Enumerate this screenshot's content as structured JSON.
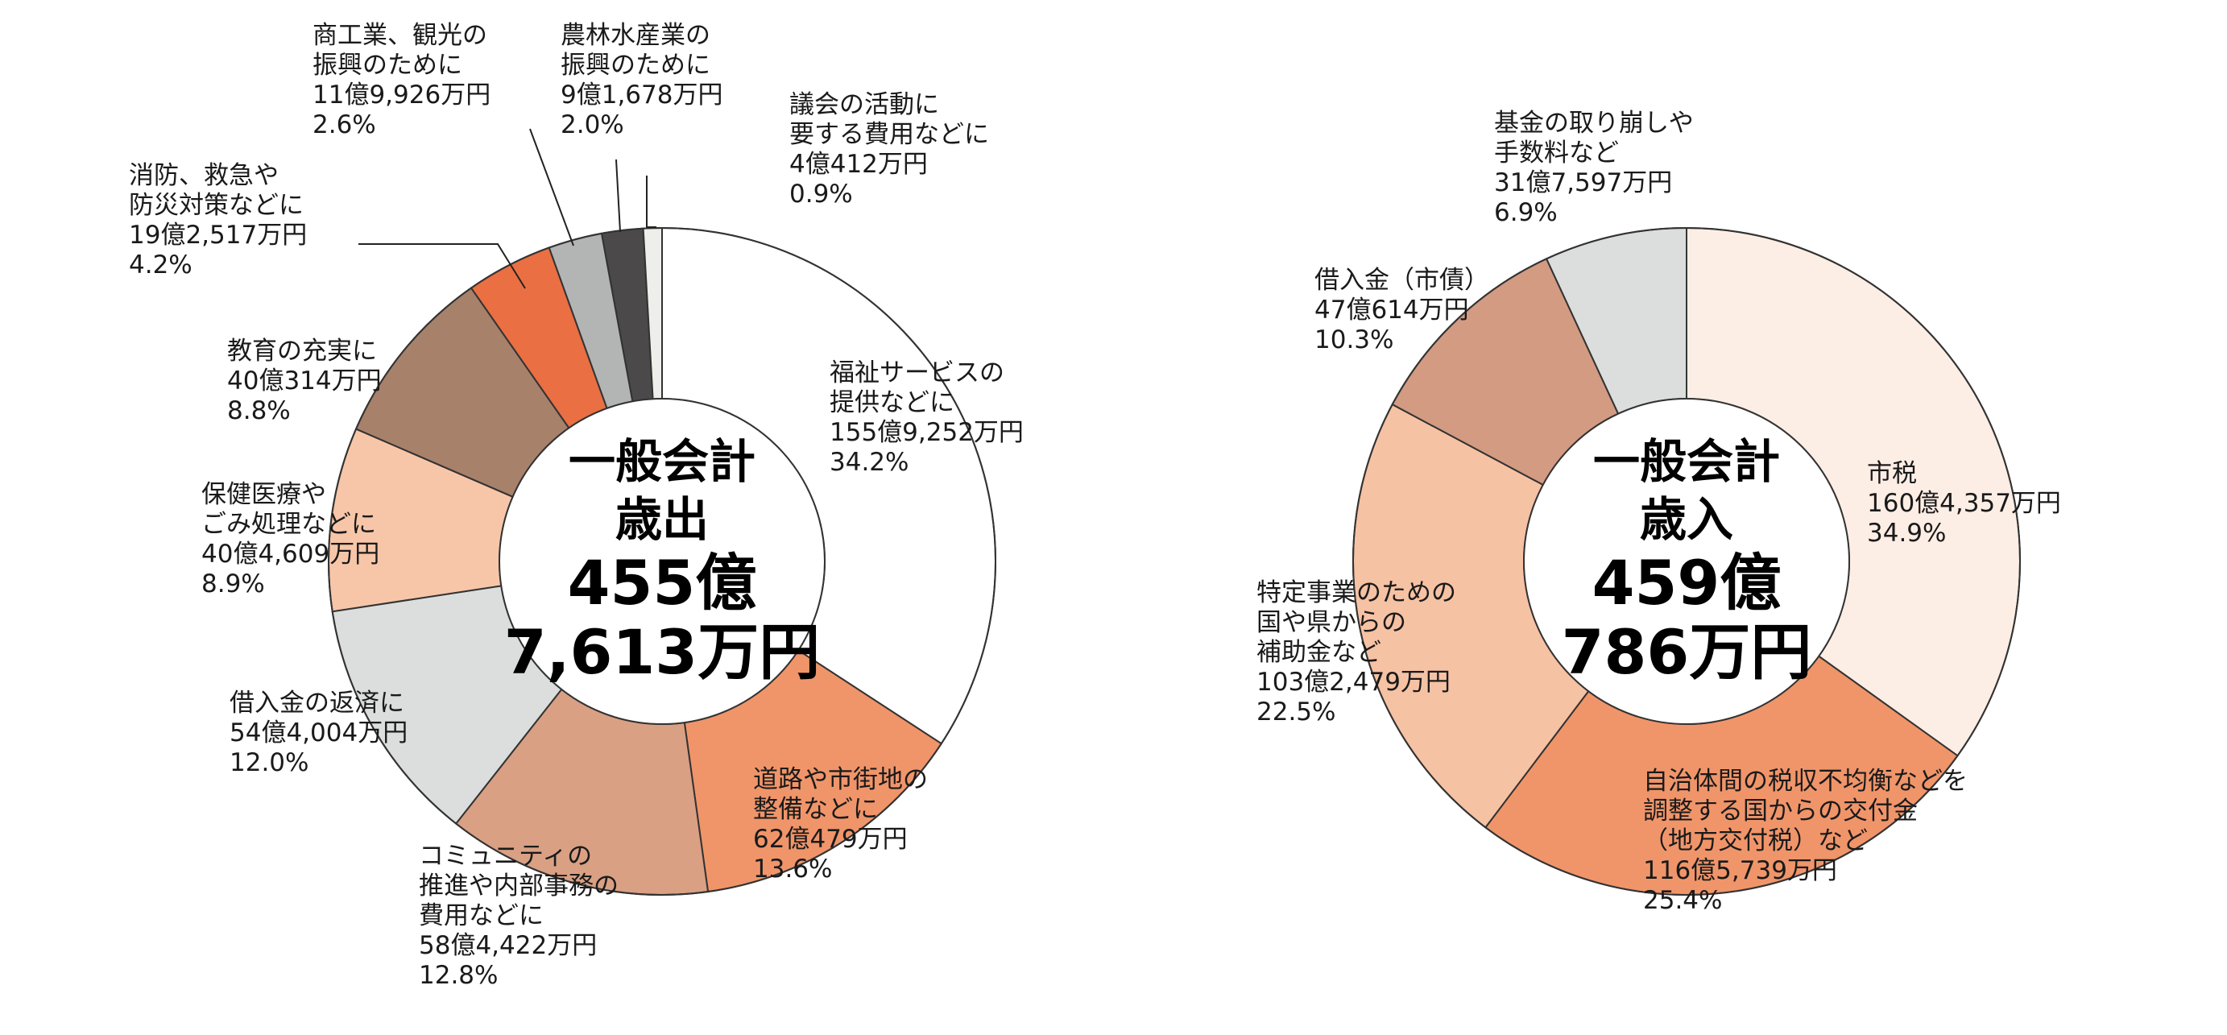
{
  "chart_data": [
    {
      "type": "pie",
      "center": {
        "line1": "一般会計",
        "line2": "歳出",
        "line3": "455億",
        "line4": "7,613万円"
      },
      "slices": [
        {
          "lines": [
            "福祉サービスの",
            "提供などに"
          ],
          "amount": "155億9,252万円",
          "percent_label": "34.2%",
          "value": 34.2,
          "color": "#ffffff"
        },
        {
          "lines": [
            "道路や市街地の",
            "整備などに"
          ],
          "amount": "62億479万円",
          "percent_label": "13.6%",
          "value": 13.6,
          "color": "#f0956a"
        },
        {
          "lines": [
            "コミュニティの",
            "推進や内部事務の",
            "費用などに"
          ],
          "amount": "58億4,422万円",
          "percent_label": "12.8%",
          "value": 12.8,
          "color": "#d9a084"
        },
        {
          "lines": [
            "借入金の返済に"
          ],
          "amount": "54億4,004万円",
          "percent_label": "12.0%",
          "value": 12.0,
          "color": "#dcdddd"
        },
        {
          "lines": [
            "保健医療や",
            "ごみ処理などに"
          ],
          "amount": "40億4,609万円",
          "percent_label": "8.9%",
          "value": 8.9,
          "color": "#f7c6a8"
        },
        {
          "lines": [
            "教育の充実に"
          ],
          "amount": "40億314万円",
          "percent_label": "8.8%",
          "value": 8.8,
          "color": "#a8816b"
        },
        {
          "lines": [
            "消防、救急や",
            "防災対策などに"
          ],
          "amount": "19億2,517万円",
          "percent_label": "4.2%",
          "value": 4.2,
          "color": "#ea6f42"
        },
        {
          "lines": [
            "商工業、観光の",
            "振興のために"
          ],
          "amount": "11億9,926万円",
          "percent_label": "2.6%",
          "value": 2.6,
          "color": "#b3b4b4"
        },
        {
          "lines": [
            "農林水産業の",
            "振興のために"
          ],
          "amount": "9億1,678万円",
          "percent_label": "2.0%",
          "value": 2.0,
          "color": "#4b4949"
        },
        {
          "lines": [
            "議会の活動に",
            "要する費用などに"
          ],
          "amount": "4億412万円",
          "percent_label": "0.9%",
          "value": 0.9,
          "color": "#eeeeea"
        }
      ]
    },
    {
      "type": "pie",
      "center": {
        "line1": "一般会計",
        "line2": "歳入",
        "line3": "459億",
        "line4": "786万円"
      },
      "slices": [
        {
          "lines": [
            "市税"
          ],
          "amount": "160億4,357万円",
          "percent_label": "34.9%",
          "value": 34.9,
          "color": "#fdeee5"
        },
        {
          "lines": [
            "自治体間の税収不均衡などを",
            "調整する国からの交付金",
            "（地方交付税）など"
          ],
          "amount": "116億5,739万円",
          "percent_label": "25.4%",
          "value": 25.4,
          "color": "#f0956a"
        },
        {
          "lines": [
            "特定事業のための",
            "国や県からの",
            "補助金など"
          ],
          "amount": "103億2,479万円",
          "percent_label": "22.5%",
          "value": 22.5,
          "color": "#f6c2a4"
        },
        {
          "lines": [
            "借入金（市債）"
          ],
          "amount": "47億614万円",
          "percent_label": "10.3%",
          "value": 10.3,
          "color": "#d39b82"
        },
        {
          "lines": [
            "基金の取り崩しや",
            "手数料など"
          ],
          "amount": "31億7,597万円",
          "percent_label": "6.9%",
          "value": 6.9,
          "color": "#dcdddd"
        }
      ]
    }
  ]
}
